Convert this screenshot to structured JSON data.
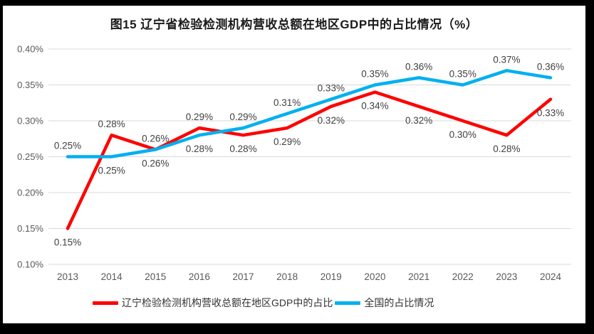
{
  "title": "图15 辽宁省检验检测机构营收总额在地区GDP中的占比情况（%）",
  "colors": {
    "frame_border": "#000000",
    "panel_background": "#ffffff",
    "gridline": "#d9d9d9",
    "axis_tick_text": "#595959",
    "data_label_text": "#404040",
    "series_liaoning": "#ff0000",
    "series_national": "#00b0f0"
  },
  "chart_data": {
    "type": "line",
    "title": "图15 辽宁省检验检测机构营收总额在地区GDP中的占比情况（%）",
    "categories": [
      "2013",
      "2014",
      "2015",
      "2016",
      "2017",
      "2018",
      "2019",
      "2020",
      "2021",
      "2022",
      "2023",
      "2024"
    ],
    "unit": "percent of regional GDP",
    "ylim": [
      0.1,
      0.4
    ],
    "yticks": [
      "0.40%",
      "0.35%",
      "0.30%",
      "0.25%",
      "0.20%",
      "0.15%",
      "0.10%"
    ],
    "ytick_values": [
      0.4,
      0.35,
      0.3,
      0.25,
      0.2,
      0.15,
      0.1
    ],
    "grid": true,
    "legend_position": "bottom",
    "series": [
      {
        "name": "辽宁检验检测机构营收总额在地区GDP中的占比",
        "color": "#ff0000",
        "values": [
          0.15,
          0.28,
          0.26,
          0.29,
          0.28,
          0.29,
          0.32,
          0.34,
          0.32,
          0.3,
          0.28,
          0.33
        ],
        "point_labels": [
          "0.15%",
          "0.28%",
          "0.26%",
          "0.29%",
          "0.28%",
          "0.29%",
          "0.32%",
          "0.34%",
          "0.32%",
          "0.30%",
          "0.28%",
          "0.33%"
        ],
        "label_positions": [
          "below",
          "above",
          "above",
          "above",
          "below",
          "below",
          "below",
          "below",
          "below",
          "below",
          "below",
          "below"
        ]
      },
      {
        "name": "全国的占比情况",
        "color": "#00b0f0",
        "values": [
          0.25,
          0.25,
          0.26,
          0.28,
          0.29,
          0.31,
          0.33,
          0.35,
          0.36,
          0.35,
          0.37,
          0.36
        ],
        "point_labels": [
          "0.25%",
          "0.25%",
          "0.26%",
          "0.28%",
          "0.29%",
          "0.31%",
          "0.33%",
          "0.35%",
          "0.36%",
          "0.35%",
          "0.37%",
          "0.36%"
        ],
        "label_positions": [
          "above",
          "below",
          "below",
          "below",
          "above",
          "above",
          "above",
          "above",
          "above",
          "above",
          "above",
          "above"
        ]
      }
    ]
  }
}
